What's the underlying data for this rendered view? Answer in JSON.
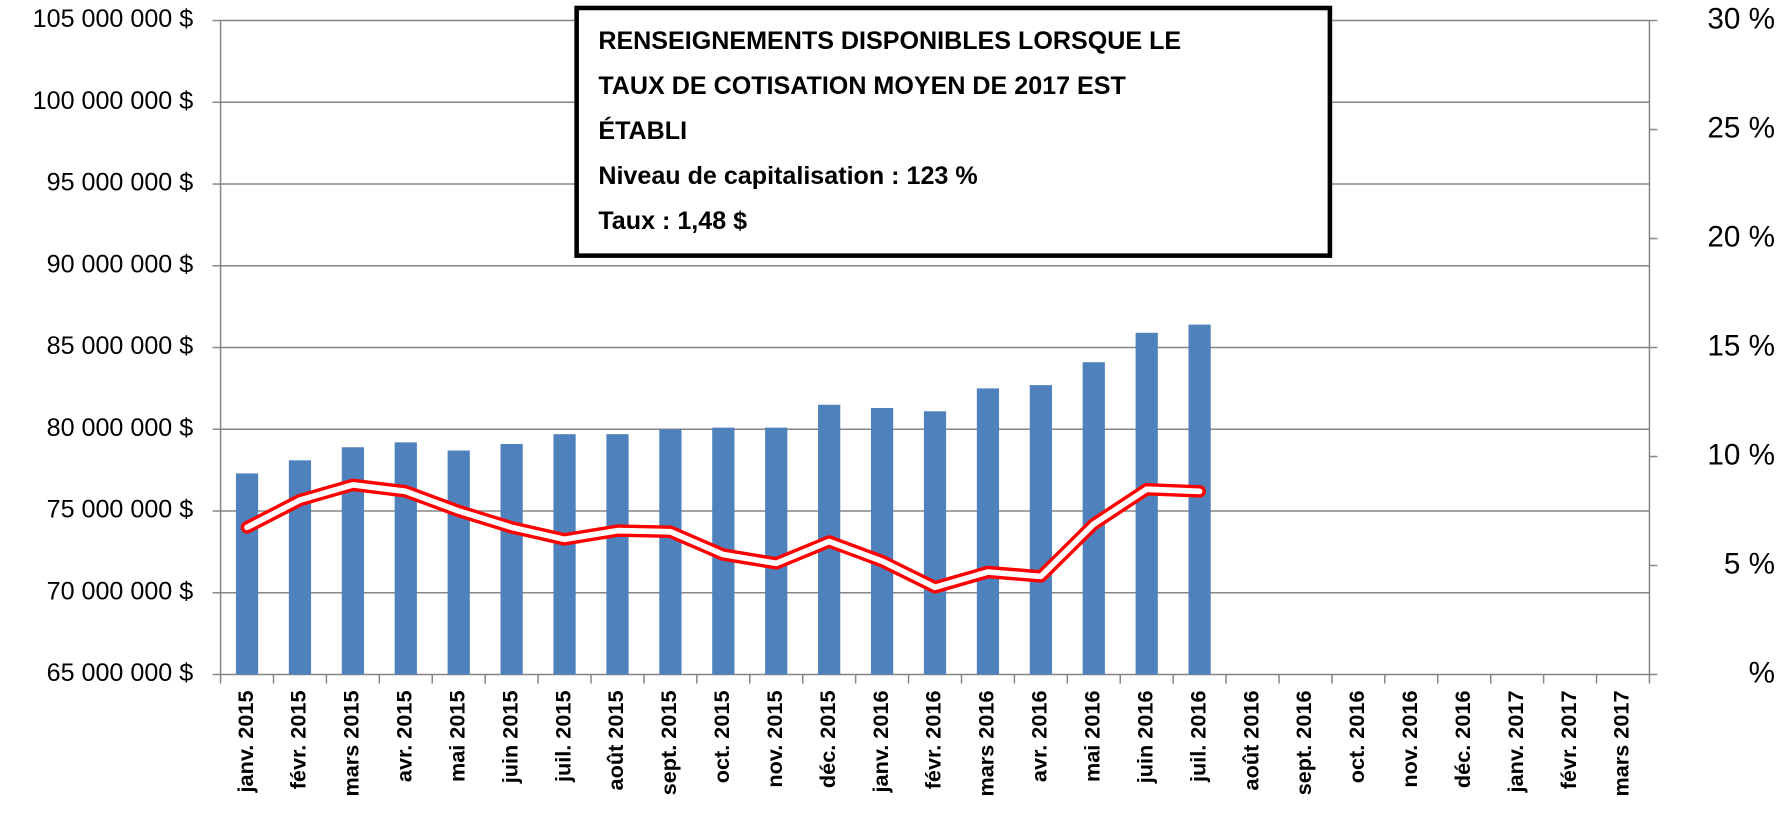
{
  "chart_data": {
    "type": "bar",
    "categories": [
      "janv. 2015",
      "févr. 2015",
      "mars 2015",
      "avr. 2015",
      "mai 2015",
      "juin 2015",
      "juil. 2015",
      "août 2015",
      "sept. 2015",
      "oct. 2015",
      "nov. 2015",
      "déc. 2015",
      "janv. 2016",
      "févr. 2016",
      "mars 2016",
      "avr. 2016",
      "mai 2016",
      "juin 2016",
      "juil. 2016",
      "août 2016",
      "sept. 2016",
      "oct. 2016",
      "nov. 2016",
      "déc. 2016",
      "janv. 2017",
      "févr. 2017",
      "mars 2017"
    ],
    "series": [
      {
        "type": "bar",
        "color": "#4f81bd",
        "values": [
          77300000,
          78100000,
          78900000,
          79200000,
          78700000,
          79100000,
          79700000,
          79700000,
          80000000,
          80100000,
          80100000,
          81500000,
          81300000,
          81100000,
          82500000,
          82700000,
          84100000,
          85900000,
          86400000,
          null,
          null,
          null,
          null,
          null,
          null,
          null,
          null
        ]
      },
      {
        "type": "line",
        "axis": "y2",
        "color": "#ff0000",
        "values": [
          6.75,
          8.0,
          8.7,
          8.4,
          7.5,
          6.75,
          6.2,
          6.6,
          6.55,
          5.5,
          5.1,
          6.1,
          5.2,
          4.0,
          4.7,
          4.5,
          6.9,
          8.5,
          8.4,
          null,
          null,
          null,
          null,
          null,
          null,
          null,
          null
        ]
      }
    ],
    "ylim": [
      65000000,
      105000000
    ],
    "yticks": [
      {
        "value": 65000000,
        "label": "65 000 000 $"
      },
      {
        "value": 70000000,
        "label": "70 000 000 $"
      },
      {
        "value": 75000000,
        "label": "75 000 000 $"
      },
      {
        "value": 80000000,
        "label": "80 000 000 $"
      },
      {
        "value": 85000000,
        "label": "85 000 000 $"
      },
      {
        "value": 90000000,
        "label": "90 000 000 $"
      },
      {
        "value": 95000000,
        "label": "95 000 000 $"
      },
      {
        "value": 100000000,
        "label": "100 000 000 $"
      },
      {
        "value": 105000000,
        "label": "105 000 000 $"
      }
    ],
    "y2lim": [
      0,
      30
    ],
    "y2ticks": [
      {
        "value": 0,
        "label": "%"
      },
      {
        "value": 5,
        "label": "5 %"
      },
      {
        "value": 10,
        "label": "10 %"
      },
      {
        "value": 15,
        "label": "15 %"
      },
      {
        "value": 20,
        "label": "20 %"
      },
      {
        "value": 25,
        "label": "25 %"
      },
      {
        "value": 30,
        "label": "30 %"
      }
    ],
    "grid": true,
    "annotation": [
      "RENSEIGNEMENTS DISPONIBLES LORSQUE LE",
      "TAUX DE COTISATION MOYEN DE 2017 EST",
      "ÉTABLI",
      "Niveau de capitalisation : 123 %",
      "Taux : 1,48 $"
    ]
  }
}
